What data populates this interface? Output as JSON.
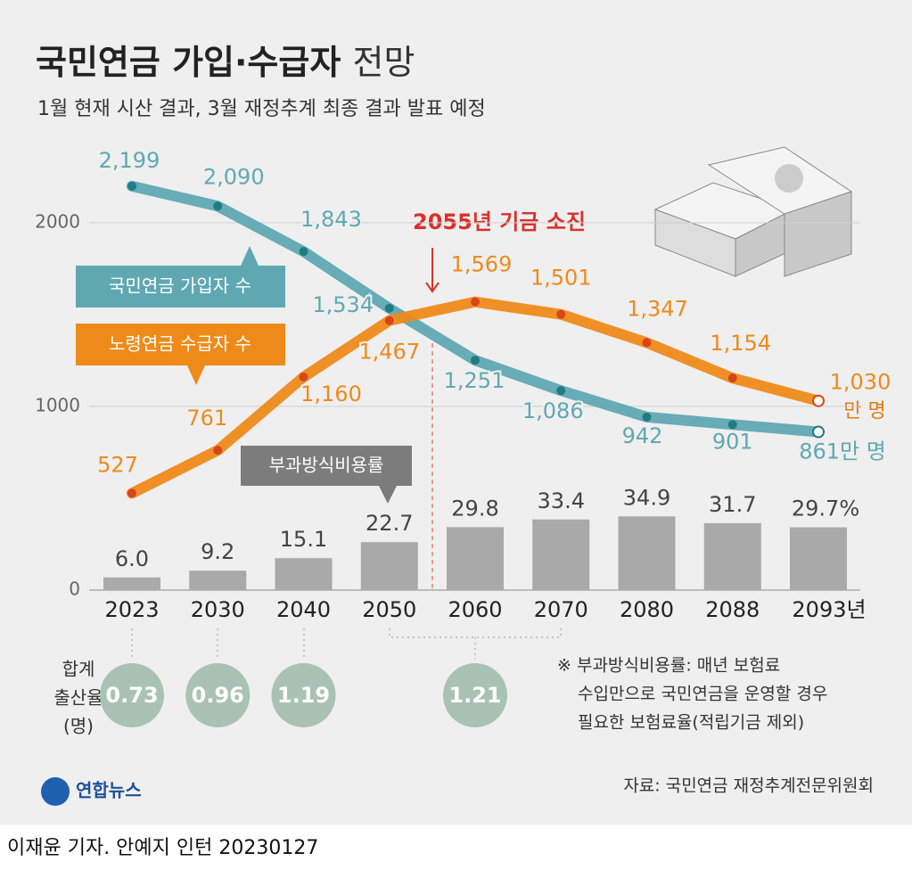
{
  "header": {
    "title": "국민연금 가입·수급자",
    "title_suffix": "전망",
    "subtitle": "1월 현재 시산 결과, 3월 재정추계 최종 결과 발표 예정"
  },
  "chart_data": {
    "type": "combo",
    "categories": [
      "2023",
      "2030",
      "2040",
      "2050",
      "2060",
      "2070",
      "2080",
      "2088",
      "2093년"
    ],
    "series": [
      {
        "name": "국민연금 가입자 수",
        "type": "line",
        "color": "#5fa8b2",
        "dot_color": "#1f7c80",
        "values": [
          2199,
          2090,
          1843,
          1534,
          1251,
          1086,
          942,
          901,
          861
        ],
        "value_labels": [
          "2,199",
          "2,090",
          "1,843",
          "1,534",
          "1,251",
          "1,086",
          "942",
          "901",
          "861만 명"
        ]
      },
      {
        "name": "노령연금 수급자 수",
        "type": "line",
        "color": "#ee8a1a",
        "dot_color": "#d9441c",
        "values": [
          527,
          761,
          1160,
          1467,
          1569,
          1501,
          1347,
          1154,
          1030
        ],
        "value_labels": [
          "527",
          "761",
          "1,160",
          "1,467",
          "1,569",
          "1,501",
          "1,347",
          "1,154",
          "1,030"
        ]
      },
      {
        "name": "부과방식비용률",
        "type": "bar",
        "axis": "y2",
        "color": "#a9a9a9",
        "values": [
          6.0,
          9.2,
          15.1,
          22.7,
          29.8,
          33.4,
          34.9,
          31.7,
          29.7
        ],
        "value_labels": [
          "6.0",
          "9.2",
          "15.1",
          "22.7",
          "29.8",
          "33.4",
          "34.9",
          "31.7",
          "29.7%"
        ]
      }
    ],
    "ylim": [
      0,
      2300
    ],
    "yticks": [
      0,
      1000,
      2000
    ],
    "y2lim": [
      0,
      200
    ],
    "grid": true,
    "unit_label": "만 명",
    "annotation": "2055년 기금 소진"
  },
  "fertility": {
    "label_lines": [
      "합계",
      "출산율",
      "(명)"
    ],
    "values": [
      0.73,
      0.96,
      1.19,
      1.21
    ]
  },
  "note": {
    "lines": [
      "※ 부과방식비용률: 매년 보험료",
      "수입만으로 국민연금을 운영할 경우",
      "필요한 보험료율(적립기금 제외)"
    ]
  },
  "source": "자료: 국민연금 재정추계전문위원회",
  "logo": "연합뉴스",
  "byline": "이재윤 기자. 안예지 인턴  20230127"
}
